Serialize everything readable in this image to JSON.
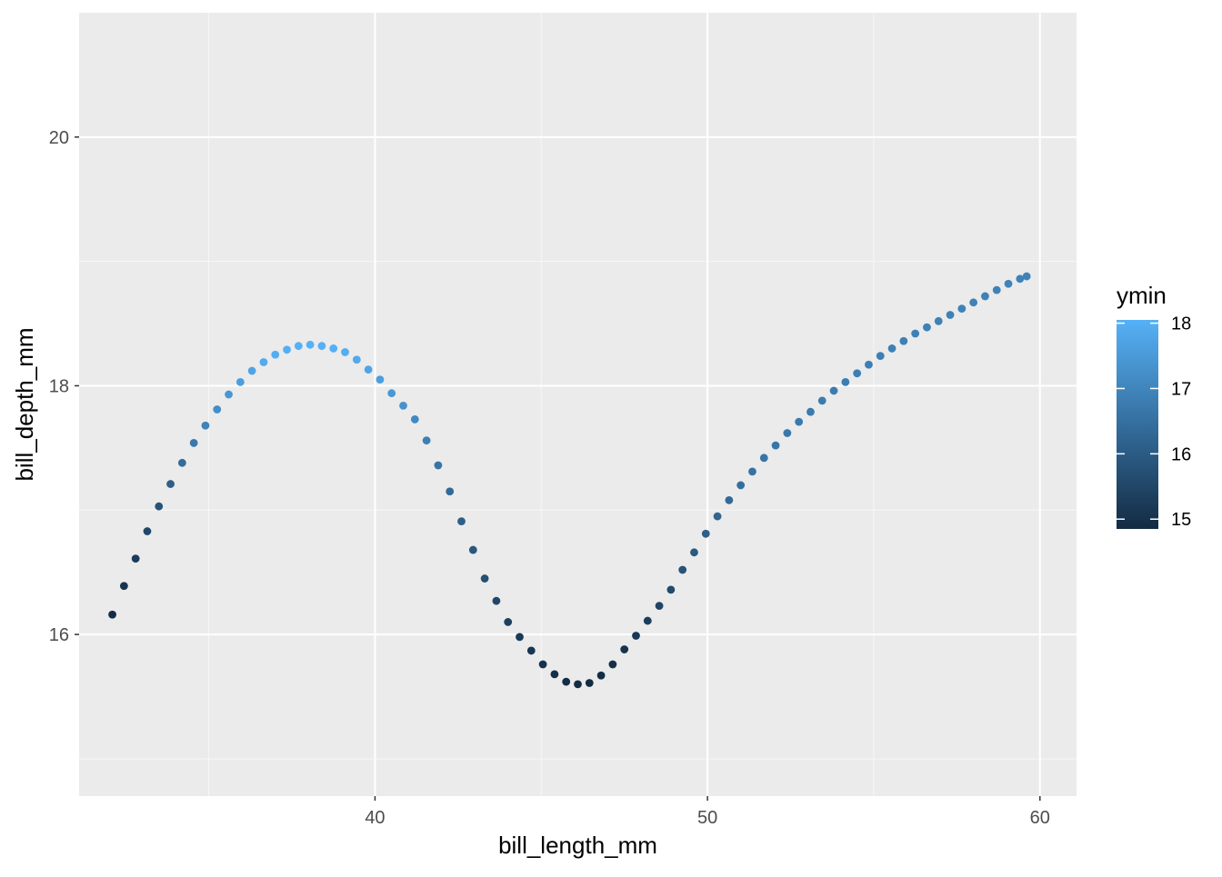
{
  "chart_data": {
    "type": "scatter",
    "title": "",
    "xlabel": "bill_length_mm",
    "ylabel": "bill_depth_mm",
    "xlim": [
      31.1,
      61.1
    ],
    "ylim": [
      14.7,
      21.0
    ],
    "grid": true,
    "x_ticks": [
      40,
      50,
      60
    ],
    "y_ticks": [
      16,
      18,
      20
    ],
    "x_tick_labels": [
      "40",
      "50",
      "60"
    ],
    "y_tick_labels": [
      "16",
      "18",
      "20"
    ],
    "colors": {
      "panel_background": "#EBEBEB",
      "grid_major": "#FFFFFF",
      "grid_minor": "#F7F7F7",
      "axis_text": "#4D4D4D",
      "tick": "#333333",
      "title_text": "#000000",
      "scale_low": "#132B43",
      "scale_high": "#56B1F7"
    },
    "legend": {
      "title": "ymin",
      "position": "right",
      "min": 14.85,
      "max": 18.05,
      "breaks": [
        15,
        16,
        17,
        18
      ],
      "labels": [
        "15",
        "16",
        "17",
        "18"
      ]
    },
    "series": [
      {
        "x": [
          32.1,
          32.45,
          32.8,
          33.15,
          33.5,
          33.85,
          34.2,
          34.55,
          34.9,
          35.25,
          35.6,
          35.95,
          36.3,
          36.65,
          37.0,
          37.35,
          37.7,
          38.05,
          38.4,
          38.75,
          39.1,
          39.45,
          39.8,
          40.15,
          40.5,
          40.85,
          41.2,
          41.55,
          41.9,
          42.25,
          42.6,
          42.95,
          43.3,
          43.65,
          44.0,
          44.35,
          44.7,
          45.05,
          45.4,
          45.75,
          46.1,
          46.45,
          46.8,
          47.15,
          47.5,
          47.85,
          48.2,
          48.55,
          48.9,
          49.25,
          49.6,
          49.95,
          50.3,
          50.65,
          51.0,
          51.35,
          51.7,
          52.05,
          52.4,
          52.75,
          53.1,
          53.45,
          53.8,
          54.15,
          54.5,
          54.85,
          55.2,
          55.55,
          55.9,
          56.25,
          56.6,
          56.95,
          57.3,
          57.65,
          58.0,
          58.35,
          58.7,
          59.05,
          59.4,
          59.6
        ],
        "y": [
          16.16,
          16.39,
          16.61,
          16.83,
          17.03,
          17.21,
          17.38,
          17.54,
          17.68,
          17.81,
          17.93,
          18.03,
          18.12,
          18.19,
          18.25,
          18.29,
          18.32,
          18.33,
          18.32,
          18.3,
          18.27,
          18.21,
          18.13,
          18.05,
          17.94,
          17.84,
          17.73,
          17.56,
          17.36,
          17.15,
          16.91,
          16.68,
          16.45,
          16.27,
          16.1,
          15.98,
          15.87,
          15.76,
          15.68,
          15.62,
          15.6,
          15.61,
          15.67,
          15.76,
          15.88,
          15.99,
          16.11,
          16.23,
          16.36,
          16.52,
          16.66,
          16.81,
          16.95,
          17.08,
          17.2,
          17.31,
          17.42,
          17.52,
          17.62,
          17.71,
          17.79,
          17.88,
          17.96,
          18.03,
          18.1,
          18.17,
          18.24,
          18.3,
          18.36,
          18.42,
          18.47,
          18.52,
          18.57,
          18.62,
          18.67,
          18.72,
          18.77,
          18.82,
          18.86,
          18.88
        ],
        "color_values": [
          14.9,
          15.05,
          15.25,
          15.5,
          15.8,
          16.1,
          16.4,
          16.7,
          16.95,
          17.2,
          17.4,
          17.6,
          17.75,
          17.85,
          17.95,
          18.0,
          18.03,
          18.05,
          18.03,
          18.0,
          17.95,
          17.85,
          17.75,
          17.6,
          17.45,
          17.3,
          17.1,
          16.85,
          16.6,
          16.35,
          16.1,
          15.9,
          15.7,
          15.5,
          15.35,
          15.2,
          15.1,
          15.0,
          14.95,
          14.9,
          14.87,
          14.87,
          14.9,
          14.95,
          15.05,
          15.15,
          15.3,
          15.45,
          15.6,
          15.8,
          15.95,
          16.1,
          16.25,
          16.35,
          16.45,
          16.55,
          16.6,
          16.65,
          16.7,
          16.72,
          16.75,
          16.78,
          16.8,
          16.82,
          16.84,
          16.85,
          16.86,
          16.87,
          16.88,
          16.89,
          16.9,
          16.9,
          16.91,
          16.92,
          16.92,
          16.93,
          16.93,
          16.94,
          16.95,
          16.95
        ]
      }
    ]
  }
}
